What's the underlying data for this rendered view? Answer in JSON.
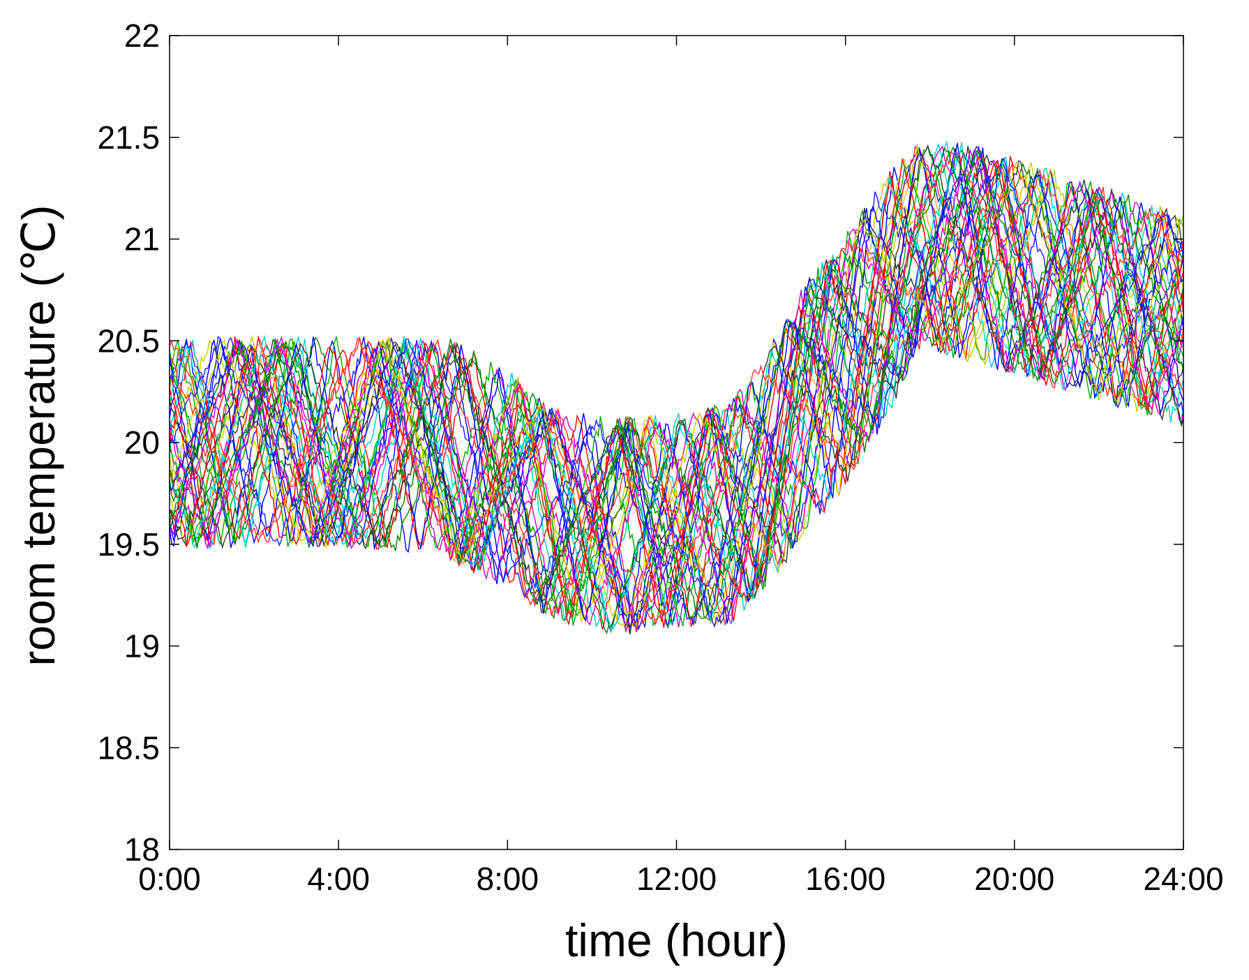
{
  "chart_data": {
    "type": "line",
    "xlabel": "time (hour)",
    "ylabel": "room temperature (℃)",
    "xlim": [
      0,
      24
    ],
    "ylim": [
      18,
      22
    ],
    "xticks": [
      0,
      4,
      8,
      12,
      16,
      20,
      24
    ],
    "xtick_labels": [
      "0:00",
      "4:00",
      "8:00",
      "12:00",
      "16:00",
      "20:00",
      "24:00"
    ],
    "yticks": [
      18,
      18.5,
      19,
      19.5,
      20,
      20.5,
      21,
      21.5,
      22
    ],
    "ytick_labels": [
      "18",
      "18.5",
      "19",
      "19.5",
      "20",
      "20.5",
      "21",
      "21.5",
      "22"
    ],
    "grid": false,
    "legend": "none",
    "band_summary": [
      {
        "x": 0,
        "min": 19.5,
        "max": 20.5
      },
      {
        "x": 4,
        "min": 19.5,
        "max": 20.5
      },
      {
        "x": 6.5,
        "min": 19.45,
        "max": 20.5
      },
      {
        "x": 8,
        "min": 19.3,
        "max": 20.35
      },
      {
        "x": 9,
        "min": 19.15,
        "max": 20.15
      },
      {
        "x": 10.5,
        "min": 19.07,
        "max": 20.1
      },
      {
        "x": 12,
        "min": 19.1,
        "max": 20.12
      },
      {
        "x": 13.3,
        "min": 19.12,
        "max": 20.2
      },
      {
        "x": 14.5,
        "min": 19.4,
        "max": 20.55
      },
      {
        "x": 15,
        "min": 19.55,
        "max": 20.75
      },
      {
        "x": 16,
        "min": 19.8,
        "max": 21.0
      },
      {
        "x": 17,
        "min": 20.15,
        "max": 21.3
      },
      {
        "x": 17.8,
        "min": 20.5,
        "max": 21.47
      },
      {
        "x": 19,
        "min": 20.4,
        "max": 21.45
      },
      {
        "x": 20,
        "min": 20.35,
        "max": 21.38
      },
      {
        "x": 22,
        "min": 20.22,
        "max": 21.25
      },
      {
        "x": 24,
        "min": 20.1,
        "max": 21.1
      }
    ],
    "series_colors": [
      "#0000ff",
      "#ff0000",
      "#00aa00",
      "#00cccc",
      "#cc00cc",
      "#c8c800",
      "#333333",
      "#008000",
      "#1a1aff",
      "#ff3030"
    ],
    "series_count": 40,
    "series_period_hours": [
      2.0,
      2.3,
      2.6,
      2.9,
      3.2,
      3.5,
      3.8,
      4.1,
      4.4,
      4.7
    ]
  }
}
